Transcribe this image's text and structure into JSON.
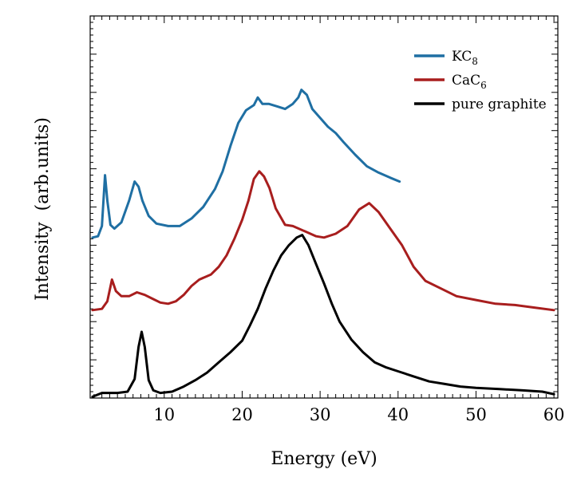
{
  "chart_data": {
    "type": "line",
    "title": "",
    "xlabel": "Energy (eV)",
    "ylabel": "Intensity  (arb.units)",
    "xlim": [
      0.5,
      60.5
    ],
    "ylim": [
      0,
      3.0
    ],
    "x_ticks": [
      10,
      20,
      30,
      40,
      50,
      60
    ],
    "x_tick_labels": [
      "10",
      "20",
      "30",
      "40",
      "50",
      "60"
    ],
    "y_tick_labels_shown": false,
    "grid": false,
    "legend_position": "top-right",
    "series": [
      {
        "name": "KC8",
        "legend_main": "KC",
        "legend_sub": "8",
        "color": "#1f6fa3",
        "points": [
          [
            0.8,
            1.26
          ],
          [
            1.5,
            1.27
          ],
          [
            2.0,
            1.35
          ],
          [
            2.4,
            1.75
          ],
          [
            2.7,
            1.55
          ],
          [
            3.1,
            1.36
          ],
          [
            3.6,
            1.33
          ],
          [
            4.5,
            1.38
          ],
          [
            5.5,
            1.55
          ],
          [
            6.2,
            1.7
          ],
          [
            6.7,
            1.66
          ],
          [
            7.2,
            1.55
          ],
          [
            8.0,
            1.43
          ],
          [
            9.0,
            1.37
          ],
          [
            10.5,
            1.35
          ],
          [
            12.0,
            1.35
          ],
          [
            13.5,
            1.41
          ],
          [
            15.0,
            1.5
          ],
          [
            16.5,
            1.64
          ],
          [
            17.5,
            1.78
          ],
          [
            18.5,
            1.98
          ],
          [
            19.5,
            2.16
          ],
          [
            20.5,
            2.26
          ],
          [
            21.5,
            2.3
          ],
          [
            22.0,
            2.36
          ],
          [
            22.6,
            2.31
          ],
          [
            23.4,
            2.31
          ],
          [
            24.5,
            2.29
          ],
          [
            25.5,
            2.27
          ],
          [
            26.5,
            2.31
          ],
          [
            27.2,
            2.36
          ],
          [
            27.6,
            2.42
          ],
          [
            28.3,
            2.38
          ],
          [
            29.0,
            2.27
          ],
          [
            30.0,
            2.2
          ],
          [
            31.0,
            2.13
          ],
          [
            32.0,
            2.08
          ],
          [
            33.0,
            2.01
          ],
          [
            34.5,
            1.91
          ],
          [
            36.0,
            1.82
          ],
          [
            37.5,
            1.77
          ],
          [
            39.0,
            1.73
          ],
          [
            40.2,
            1.7
          ]
        ]
      },
      {
        "name": "CaC6",
        "legend_main": "CaC",
        "legend_sub": "6",
        "color": "#a81e1e",
        "points": [
          [
            0.8,
            0.69
          ],
          [
            2.0,
            0.7
          ],
          [
            2.7,
            0.76
          ],
          [
            3.3,
            0.93
          ],
          [
            3.8,
            0.84
          ],
          [
            4.5,
            0.8
          ],
          [
            5.5,
            0.8
          ],
          [
            6.5,
            0.83
          ],
          [
            7.5,
            0.81
          ],
          [
            8.5,
            0.78
          ],
          [
            9.5,
            0.75
          ],
          [
            10.5,
            0.74
          ],
          [
            11.5,
            0.76
          ],
          [
            12.5,
            0.81
          ],
          [
            13.5,
            0.88
          ],
          [
            14.5,
            0.93
          ],
          [
            16.0,
            0.97
          ],
          [
            17.0,
            1.03
          ],
          [
            18.0,
            1.12
          ],
          [
            19.0,
            1.25
          ],
          [
            20.0,
            1.4
          ],
          [
            20.8,
            1.55
          ],
          [
            21.5,
            1.72
          ],
          [
            22.2,
            1.78
          ],
          [
            22.8,
            1.74
          ],
          [
            23.5,
            1.65
          ],
          [
            24.3,
            1.49
          ],
          [
            25.5,
            1.36
          ],
          [
            26.5,
            1.35
          ],
          [
            28.0,
            1.31
          ],
          [
            29.5,
            1.27
          ],
          [
            30.5,
            1.26
          ],
          [
            32.0,
            1.29
          ],
          [
            33.5,
            1.35
          ],
          [
            35.0,
            1.48
          ],
          [
            36.3,
            1.53
          ],
          [
            37.5,
            1.46
          ],
          [
            39.0,
            1.33
          ],
          [
            40.5,
            1.2
          ],
          [
            42.0,
            1.03
          ],
          [
            43.5,
            0.92
          ],
          [
            45.5,
            0.86
          ],
          [
            47.5,
            0.8
          ],
          [
            50.0,
            0.77
          ],
          [
            52.5,
            0.74
          ],
          [
            55.0,
            0.73
          ],
          [
            57.5,
            0.71
          ],
          [
            60.0,
            0.69
          ]
        ]
      },
      {
        "name": "pure graphite",
        "legend_main": "pure graphite",
        "legend_sub": "",
        "color": "#000000",
        "points": [
          [
            0.8,
            0.01
          ],
          [
            2.0,
            0.04
          ],
          [
            4.0,
            0.04
          ],
          [
            5.3,
            0.05
          ],
          [
            6.2,
            0.15
          ],
          [
            6.7,
            0.4
          ],
          [
            7.1,
            0.52
          ],
          [
            7.5,
            0.4
          ],
          [
            8.0,
            0.14
          ],
          [
            8.6,
            0.06
          ],
          [
            9.5,
            0.04
          ],
          [
            11.0,
            0.05
          ],
          [
            12.5,
            0.09
          ],
          [
            14.0,
            0.14
          ],
          [
            15.5,
            0.2
          ],
          [
            17.0,
            0.28
          ],
          [
            18.5,
            0.36
          ],
          [
            20.0,
            0.45
          ],
          [
            21.0,
            0.57
          ],
          [
            22.0,
            0.7
          ],
          [
            23.0,
            0.86
          ],
          [
            24.0,
            1.0
          ],
          [
            25.0,
            1.12
          ],
          [
            26.0,
            1.2
          ],
          [
            27.0,
            1.26
          ],
          [
            27.7,
            1.28
          ],
          [
            28.5,
            1.2
          ],
          [
            29.5,
            1.05
          ],
          [
            30.5,
            0.9
          ],
          [
            31.5,
            0.74
          ],
          [
            32.5,
            0.6
          ],
          [
            34.0,
            0.46
          ],
          [
            35.5,
            0.36
          ],
          [
            37.0,
            0.28
          ],
          [
            38.5,
            0.24
          ],
          [
            40.0,
            0.21
          ],
          [
            42.0,
            0.17
          ],
          [
            44.0,
            0.13
          ],
          [
            46.0,
            0.11
          ],
          [
            48.0,
            0.09
          ],
          [
            50.0,
            0.08
          ],
          [
            53.0,
            0.07
          ],
          [
            56.0,
            0.06
          ],
          [
            58.5,
            0.05
          ],
          [
            60.0,
            0.03
          ]
        ]
      }
    ]
  }
}
